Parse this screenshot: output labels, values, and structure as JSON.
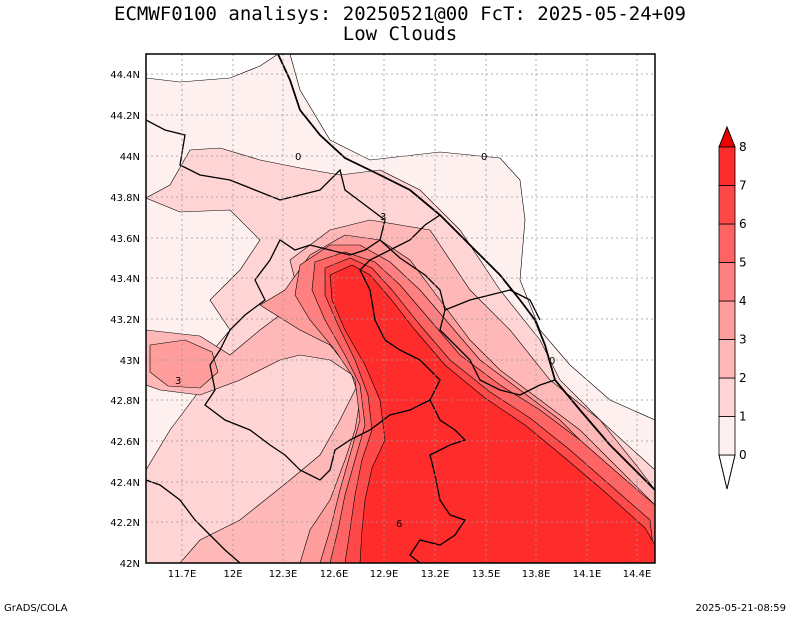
{
  "title_line1": "ECMWF0100 analisys: 20250521@00 FcT: 2025-05-24+09",
  "title_line2": "Low Clouds",
  "footer_left": "GrADS/COLA",
  "footer_right": "2025-05-21-08:59",
  "map": {
    "lat_labels": [
      "44.4N",
      "44.2N",
      "44N",
      "43.8N",
      "43.6N",
      "43.4N",
      "43.2N",
      "43N",
      "42.8N",
      "42.6N",
      "42.4N",
      "42.2N",
      "42N"
    ],
    "lon_labels": [
      "11.7E",
      "12E",
      "12.3E",
      "12.6E",
      "12.9E",
      "13.2E",
      "13.5E",
      "13.8E",
      "14.1E",
      "14.4E"
    ],
    "contour_labels": [
      "0",
      "0",
      "0",
      "3",
      "3",
      "6"
    ]
  },
  "colorbar": {
    "labels": [
      "0",
      "1",
      "2",
      "3",
      "4",
      "5",
      "6",
      "7",
      "8"
    ],
    "colors": [
      "#fff0f0",
      "#ffd4d4",
      "#ffb8b8",
      "#ff9c9c",
      "#ff8080",
      "#ff6464",
      "#ff4848",
      "#ff2c2c"
    ],
    "above_color": "#ee0000"
  }
}
